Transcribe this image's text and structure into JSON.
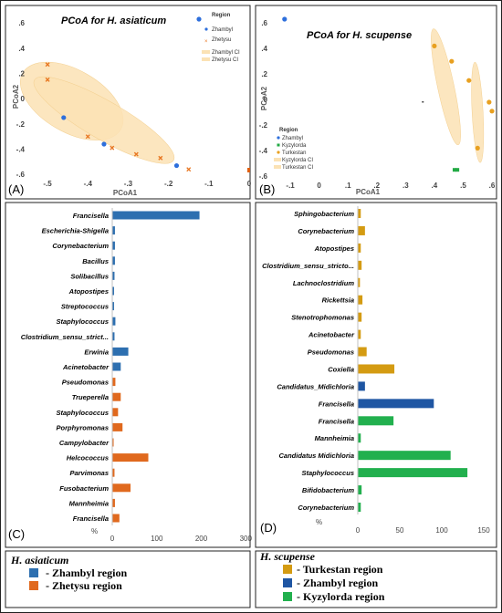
{
  "chart_data": [
    {
      "panel": "A",
      "type": "scatter",
      "title": "PCoA for H. asiaticum",
      "xlabel": "PCoA1",
      "ylabel": "PCoA2",
      "xlim": [
        -0.55,
        0.0
      ],
      "ylim": [
        -0.62,
        0.68
      ],
      "xticks": [
        -0.5,
        -0.4,
        -0.3,
        -0.2,
        -0.1,
        0
      ],
      "yticks": [
        0.6,
        0.4,
        0.2,
        0,
        -0.2,
        -0.4,
        -0.6
      ],
      "legend_title": "Region",
      "legend_items": [
        "Zhambyl",
        "Zhetysu",
        "Zhambyl CI",
        "Zhetysu CI"
      ],
      "colors": {
        "Zhambyl": "#2e6fdc",
        "Zhetysu": "#e87722",
        "ellipse": "#fbe2b4",
        "tick": "#e06010"
      },
      "series": [
        {
          "name": "Zhambyl",
          "marker": "circle",
          "x": [
            -0.46,
            -0.36,
            -0.18
          ],
          "y": [
            -0.15,
            -0.36,
            -0.53
          ]
        },
        {
          "name": "Zhetysu",
          "marker": "x",
          "x": [
            -0.5,
            -0.5,
            -0.4,
            -0.34,
            -0.28,
            -0.22,
            -0.15
          ],
          "y": [
            0.27,
            0.15,
            -0.3,
            -0.39,
            -0.44,
            -0.47,
            -0.56
          ]
        }
      ]
    },
    {
      "panel": "B",
      "type": "scatter",
      "title": "PCoA for H. scupense",
      "xlabel": "PCoA1",
      "ylabel": "PCoA2",
      "xlim": [
        -0.17,
        0.6
      ],
      "ylim": [
        -0.62,
        0.68
      ],
      "xticks": [
        -0.1,
        0,
        0.1,
        0.2,
        0.3,
        0.4,
        0.5,
        0.6
      ],
      "yticks": [
        0.6,
        0.4,
        0.2,
        0,
        -0.2,
        -0.4,
        -0.6
      ],
      "legend_title": "Region",
      "legend_items": [
        "Zhambyl",
        "Kyzylorda",
        "Turkestan",
        "Kyzylorda CI",
        "Turkestan CI"
      ],
      "colors": {
        "Zhambyl": "#2e6fdc",
        "Kyzylorda": "#22aa44",
        "Turkestan": "#e8a020",
        "ellipse": "#fbe2b4"
      },
      "series": [
        {
          "name": "Zhambyl",
          "marker": "circle",
          "x": [
            -0.12
          ],
          "y": [
            0.63
          ]
        },
        {
          "name": "Kyzylorda",
          "marker": "square",
          "x": [
            0.47,
            0.48
          ],
          "y": [
            -0.55,
            -0.55
          ]
        },
        {
          "name": "Turkestan",
          "marker": "circle",
          "x": [
            0.4,
            0.46,
            0.52,
            0.55,
            0.59,
            0.6
          ],
          "y": [
            0.42,
            0.3,
            0.15,
            -0.38,
            -0.02,
            -0.09
          ]
        }
      ]
    },
    {
      "panel": "C",
      "type": "bar",
      "orientation": "horizontal",
      "xlabel": "%",
      "xlim": [
        0,
        320
      ],
      "xticks": [
        0,
        100,
        200,
        300
      ],
      "categories": [
        "Francisella",
        "Escherichia-Shigella",
        "Corynebacterium",
        "Bacillus",
        "Solibacillus",
        "Atopostipes",
        "Streptococcus",
        "Staphylococcus",
        "Clostridium_sensu_strict...",
        "Erwinia",
        "Acinetobacter",
        "Pseudomonas",
        "Trueperella",
        "Staphylococcus",
        "Porphyromonas",
        "Campylobacter",
        "Helcococcus",
        "Parvimonas",
        "Fusobacterium",
        "Mannheimia",
        "Francisella"
      ],
      "region": [
        "Zhambyl",
        "Zhambyl",
        "Zhambyl",
        "Zhambyl",
        "Zhambyl",
        "Zhambyl",
        "Zhambyl",
        "Zhambyl",
        "Zhambyl",
        "Zhambyl",
        "Zhambyl",
        "Zhetysu",
        "Zhetysu",
        "Zhetysu",
        "Zhetysu",
        "Zhetysu",
        "Zhetysu",
        "Zhetysu",
        "Zhetysu",
        "Zhetysu",
        "Zhetysu"
      ],
      "values": [
        195,
        5,
        5,
        5,
        4,
        3,
        3,
        6,
        4,
        35,
        18,
        6,
        18,
        12,
        22,
        2,
        80,
        4,
        40,
        5,
        15
      ],
      "colors": {
        "Zhambyl": "#2d6fb0",
        "Zhetysu": "#e0691e"
      }
    },
    {
      "panel": "D",
      "type": "bar",
      "orientation": "horizontal",
      "xlabel": "%",
      "xlim": [
        0,
        150
      ],
      "xticks": [
        0,
        50,
        100,
        150
      ],
      "categories": [
        "Sphingobacterium",
        "Corynebacterium",
        "Atopostipes",
        "Clostridium_sensu_stricto...",
        "Lachnoclostridium",
        "Rickettsia",
        "Stenotrophomonas",
        "Acinetobacter",
        "Pseudomonas",
        "Coxiella",
        "Candidatus_Midichloria",
        "Francisella",
        "Francisella",
        "Mannheimia",
        "Candidatus Midichloria",
        "Staphylococcus",
        "Bifidobacterium",
        "Corynebacterium"
      ],
      "region": [
        "Turkestan",
        "Turkestan",
        "Turkestan",
        "Turkestan",
        "Turkestan",
        "Turkestan",
        "Turkestan",
        "Turkestan",
        "Turkestan",
        "Turkestan",
        "Zhambyl",
        "Zhambyl",
        "Kyzylorda",
        "Kyzylorda",
        "Kyzylorda",
        "Kyzylorda",
        "Kyzylorda",
        "Kyzylorda"
      ],
      "values": [
        3,
        8,
        3,
        4,
        2,
        5,
        4,
        3,
        10,
        43,
        8,
        90,
        42,
        3,
        110,
        130,
        4,
        3
      ],
      "colors": {
        "Turkestan": "#d49b12",
        "Zhambyl": "#1f56a3",
        "Kyzylorda": "#22b04e"
      }
    }
  ],
  "panel_letters": {
    "A": "(A)",
    "B": "(B)",
    "C": "(C)",
    "D": "(D)"
  },
  "legend_left": {
    "title": "H. asiaticum",
    "items": [
      {
        "label": "- Zhambyl region",
        "color": "#2d6fb0"
      },
      {
        "label": "- Zhetysu region",
        "color": "#e0691e"
      }
    ]
  },
  "legend_right": {
    "title": "H. scupense",
    "items": [
      {
        "label": "- Turkestan region",
        "color": "#d49b12"
      },
      {
        "label": "- Zhambyl region",
        "color": "#1f56a3"
      },
      {
        "label": "-  Kyzylorda region",
        "color": "#22b04e"
      }
    ]
  }
}
